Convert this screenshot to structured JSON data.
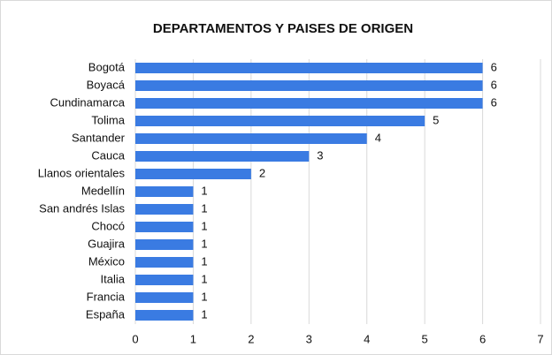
{
  "chart_data": {
    "type": "bar",
    "orientation": "horizontal",
    "title": "DEPARTAMENTOS Y PAISES DE ORIGEN",
    "categories": [
      "Bogotá",
      "Boyacá",
      "Cundinamarca",
      "Tolima",
      "Santander",
      "Cauca",
      "Llanos orientales",
      "Medellín",
      "San andrés Islas",
      "Chocó",
      "Guajira",
      "México",
      "Italia",
      "Francia",
      "España"
    ],
    "values": [
      6,
      6,
      6,
      5,
      4,
      3,
      2,
      1,
      1,
      1,
      1,
      1,
      1,
      1,
      1
    ],
    "color": "#3a7be2",
    "xlim": [
      0,
      7
    ],
    "xticks": [
      0,
      1,
      2,
      3,
      4,
      5,
      6,
      7
    ],
    "grid": true
  }
}
